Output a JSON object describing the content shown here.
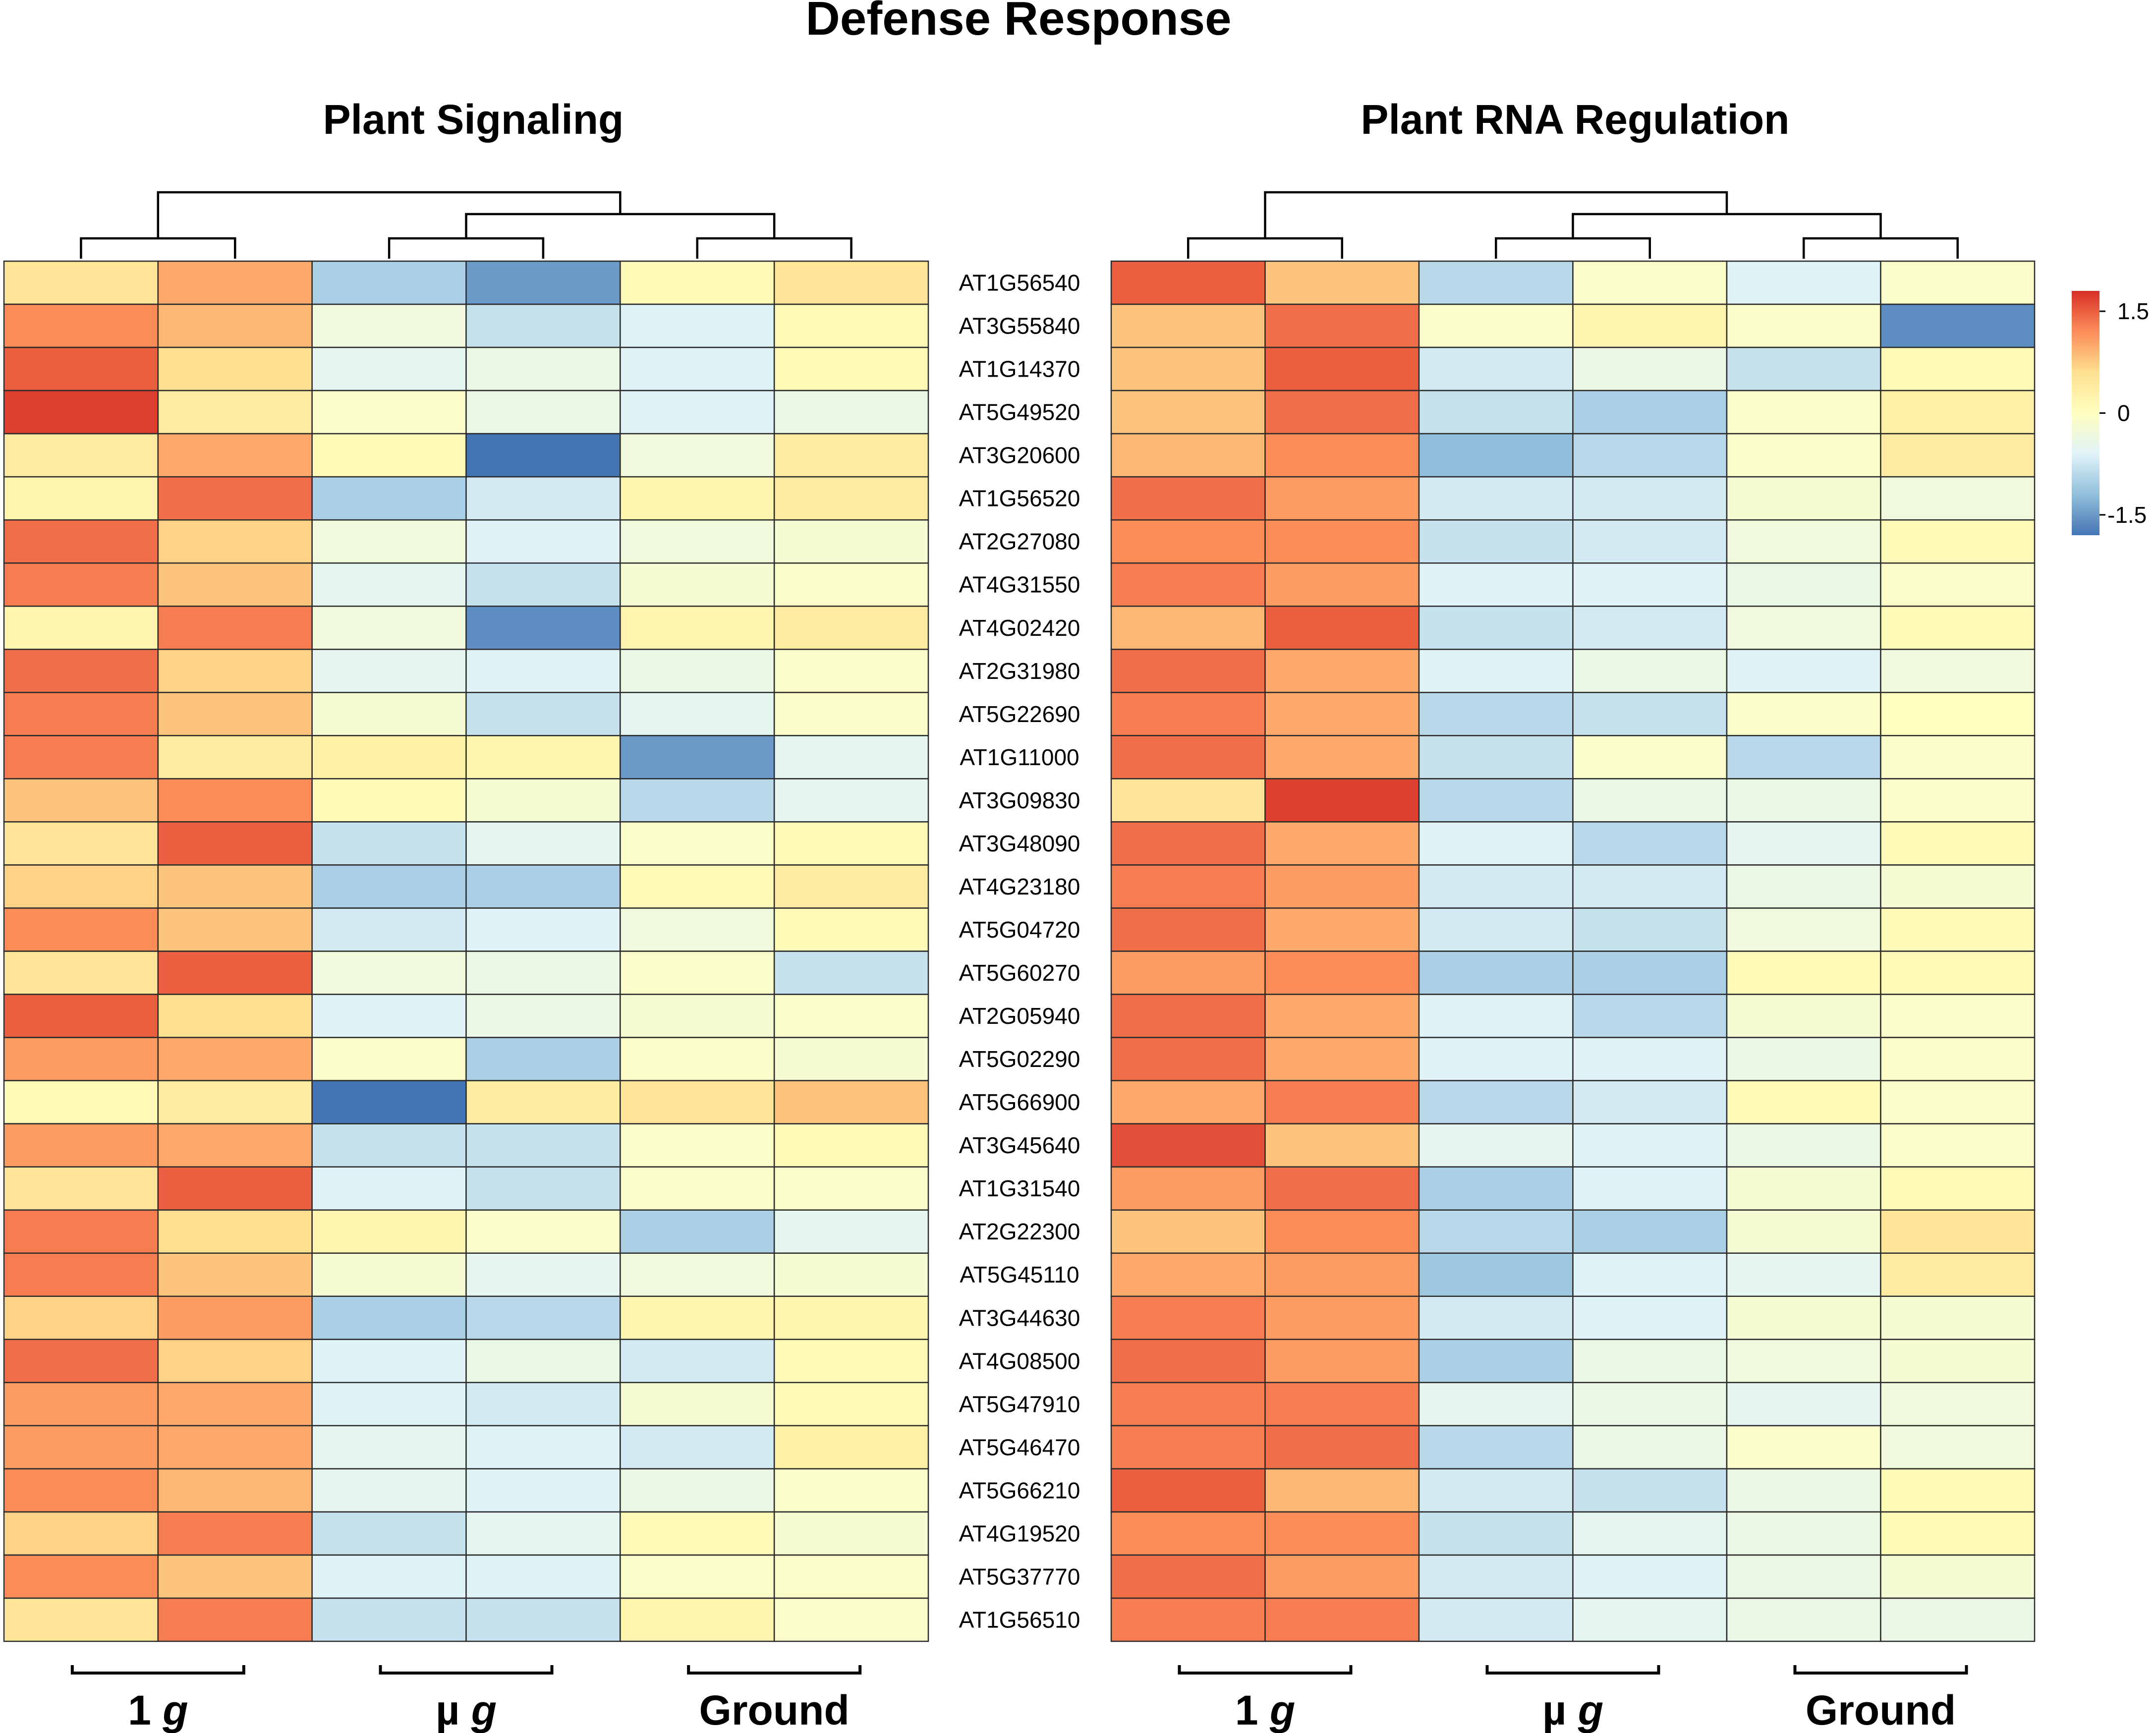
{
  "title": "Defense Response",
  "row_labels": [
    "AT1G56540",
    "AT3G55840",
    "AT1G14370",
    "AT5G49520",
    "AT3G20600",
    "AT1G56520",
    "AT2G27080",
    "AT4G31550",
    "AT4G02420",
    "AT2G31980",
    "AT5G22690",
    "AT1G11000",
    "AT3G09830",
    "AT3G48090",
    "AT4G23180",
    "AT5G04720",
    "AT5G60270",
    "AT2G05940",
    "AT5G02290",
    "AT5G66900",
    "AT3G45640",
    "AT1G31540",
    "AT2G22300",
    "AT5G45110",
    "AT3G44630",
    "AT4G08500",
    "AT5G47910",
    "AT5G46470",
    "AT5G66210",
    "AT4G19520",
    "AT5G37770",
    "AT1G56510"
  ],
  "group_labels": [
    {
      "main": "1 ",
      "italic": "g"
    },
    {
      "main": "µ ",
      "italic": "g"
    },
    {
      "main": "Ground",
      "italic": ""
    }
  ],
  "colorbar": {
    "ticks": [
      {
        "value": 1.5,
        "label": "1.5"
      },
      {
        "value": 0,
        "label": "0"
      },
      {
        "value": -1.5,
        "label": "-1.5"
      }
    ],
    "range": [
      -1.8,
      1.8
    ]
  },
  "colors": {
    "low": "#4575b4",
    "mid_low": "#91bfdb",
    "light_low": "#e0f3f8",
    "mid": "#ffffbf",
    "light_high": "#fee090",
    "mid_high": "#fc8d59",
    "high": "#d73027"
  },
  "chart_data": [
    {
      "type": "heatmap",
      "title": "Plant Signaling",
      "columns_per_group": 2,
      "values": [
        [
          0.5,
          1.0,
          -1.0,
          -1.5,
          0.1,
          0.5
        ],
        [
          1.2,
          0.9,
          -0.3,
          -0.8,
          -0.6,
          0.1
        ],
        [
          1.5,
          0.6,
          -0.5,
          -0.4,
          -0.6,
          0.1
        ],
        [
          1.7,
          0.4,
          -0.1,
          -0.4,
          -0.6,
          -0.4
        ],
        [
          0.4,
          1.0,
          0.1,
          -1.8,
          -0.3,
          0.4
        ],
        [
          0.2,
          1.4,
          -1.0,
          -0.7,
          0.2,
          0.4
        ],
        [
          1.4,
          0.7,
          -0.3,
          -0.6,
          -0.3,
          -0.2
        ],
        [
          1.3,
          0.8,
          -0.5,
          -0.8,
          -0.2,
          -0.1
        ],
        [
          0.2,
          1.3,
          -0.3,
          -1.6,
          0.2,
          0.4
        ],
        [
          1.4,
          0.7,
          -0.5,
          -0.6,
          -0.4,
          -0.1
        ],
        [
          1.3,
          0.8,
          -0.2,
          -0.8,
          -0.5,
          -0.1
        ],
        [
          1.3,
          0.4,
          0.3,
          0.2,
          -1.5,
          -0.5
        ],
        [
          0.8,
          1.2,
          0.1,
          -0.2,
          -0.9,
          -0.5
        ],
        [
          0.5,
          1.5,
          -0.8,
          -0.5,
          -0.1,
          0.1
        ],
        [
          0.7,
          0.8,
          -1.0,
          -1.0,
          0.1,
          0.4
        ],
        [
          1.2,
          0.8,
          -0.7,
          -0.6,
          -0.3,
          0.1
        ],
        [
          0.5,
          1.5,
          -0.3,
          -0.4,
          -0.1,
          -0.8
        ],
        [
          1.5,
          0.6,
          -0.6,
          -0.4,
          -0.2,
          -0.1
        ],
        [
          1.1,
          1.0,
          -0.1,
          -1.0,
          -0.1,
          -0.2
        ],
        [
          0.1,
          0.4,
          -2.0,
          0.4,
          0.5,
          0.8
        ],
        [
          1.1,
          1.0,
          -0.8,
          -0.8,
          -0.1,
          0.1
        ],
        [
          0.5,
          1.5,
          -0.6,
          -0.8,
          -0.1,
          -0.1
        ],
        [
          1.3,
          0.6,
          0.2,
          -0.1,
          -1.0,
          -0.5
        ],
        [
          1.3,
          0.8,
          -0.2,
          -0.5,
          -0.3,
          -0.2
        ],
        [
          0.7,
          1.1,
          -1.0,
          -0.9,
          0.2,
          0.2
        ],
        [
          1.4,
          0.7,
          -0.6,
          -0.4,
          -0.7,
          0.1
        ],
        [
          1.1,
          1.0,
          -0.6,
          -0.7,
          -0.2,
          0.1
        ],
        [
          1.1,
          1.0,
          -0.5,
          -0.6,
          -0.7,
          0.3
        ],
        [
          1.2,
          0.9,
          -0.5,
          -0.6,
          -0.4,
          -0.1
        ],
        [
          0.7,
          1.3,
          -0.8,
          -0.5,
          0.1,
          -0.2
        ],
        [
          1.2,
          0.8,
          -0.6,
          -0.6,
          -0.1,
          -0.1
        ],
        [
          0.5,
          1.3,
          -0.8,
          -0.8,
          0.2,
          -0.1
        ]
      ]
    },
    {
      "type": "heatmap",
      "title": "Plant RNA Regulation",
      "columns_per_group": 2,
      "values": [
        [
          1.5,
          0.8,
          -0.9,
          -0.1,
          -0.6,
          -0.1
        ],
        [
          0.8,
          1.4,
          -0.1,
          0.2,
          -0.1,
          -1.6
        ],
        [
          0.8,
          1.5,
          -0.7,
          -0.4,
          -0.8,
          0.1
        ],
        [
          0.8,
          1.4,
          -0.8,
          -1.0,
          -0.1,
          0.3
        ],
        [
          0.9,
          1.2,
          -1.2,
          -0.9,
          -0.1,
          0.4
        ],
        [
          1.4,
          1.1,
          -0.7,
          -0.7,
          -0.2,
          -0.3
        ],
        [
          1.2,
          1.2,
          -0.8,
          -0.7,
          -0.3,
          0.1
        ],
        [
          1.3,
          1.1,
          -0.6,
          -0.6,
          -0.4,
          -0.1
        ],
        [
          0.9,
          1.5,
          -0.8,
          -0.7,
          -0.3,
          0.1
        ],
        [
          1.4,
          1.0,
          -0.6,
          -0.4,
          -0.6,
          -0.3
        ],
        [
          1.3,
          1.0,
          -0.9,
          -0.8,
          -0.1,
          0.0
        ],
        [
          1.4,
          1.0,
          -0.8,
          -0.1,
          -0.9,
          -0.1
        ],
        [
          0.5,
          1.7,
          -0.9,
          -0.4,
          -0.4,
          -0.1
        ],
        [
          1.4,
          1.0,
          -0.6,
          -0.9,
          -0.5,
          0.1
        ],
        [
          1.3,
          1.1,
          -0.7,
          -0.7,
          -0.4,
          -0.2
        ],
        [
          1.4,
          1.0,
          -0.7,
          -0.8,
          -0.3,
          0.1
        ],
        [
          1.1,
          1.2,
          -1.0,
          -1.0,
          0.1,
          0.1
        ],
        [
          1.4,
          1.0,
          -0.6,
          -0.9,
          -0.2,
          -0.1
        ],
        [
          1.4,
          1.0,
          -0.6,
          -0.6,
          -0.4,
          -0.1
        ],
        [
          1.0,
          1.3,
          -0.9,
          -0.7,
          0.1,
          -0.1
        ],
        [
          1.6,
          0.8,
          -0.5,
          -0.6,
          -0.4,
          -0.1
        ],
        [
          1.1,
          1.4,
          -1.0,
          -0.6,
          -0.2,
          0.1
        ],
        [
          0.8,
          1.2,
          -0.9,
          -1.0,
          -0.2,
          0.5
        ],
        [
          1.0,
          1.1,
          -1.1,
          -0.6,
          -0.5,
          0.4
        ],
        [
          1.3,
          1.1,
          -0.7,
          -0.6,
          -0.2,
          -0.2
        ],
        [
          1.4,
          1.1,
          -1.0,
          -0.4,
          -0.3,
          -0.2
        ],
        [
          1.3,
          1.3,
          -0.5,
          -0.4,
          -0.5,
          -0.3
        ],
        [
          1.3,
          1.4,
          -0.9,
          -0.4,
          -0.1,
          -0.3
        ],
        [
          1.5,
          0.9,
          -0.7,
          -0.8,
          -0.4,
          0.1
        ],
        [
          1.2,
          1.2,
          -0.8,
          -0.5,
          -0.4,
          0.1
        ],
        [
          1.4,
          1.1,
          -0.7,
          -0.6,
          -0.4,
          -0.2
        ],
        [
          1.3,
          1.3,
          -0.7,
          -0.5,
          -0.4,
          -0.4
        ]
      ]
    }
  ]
}
